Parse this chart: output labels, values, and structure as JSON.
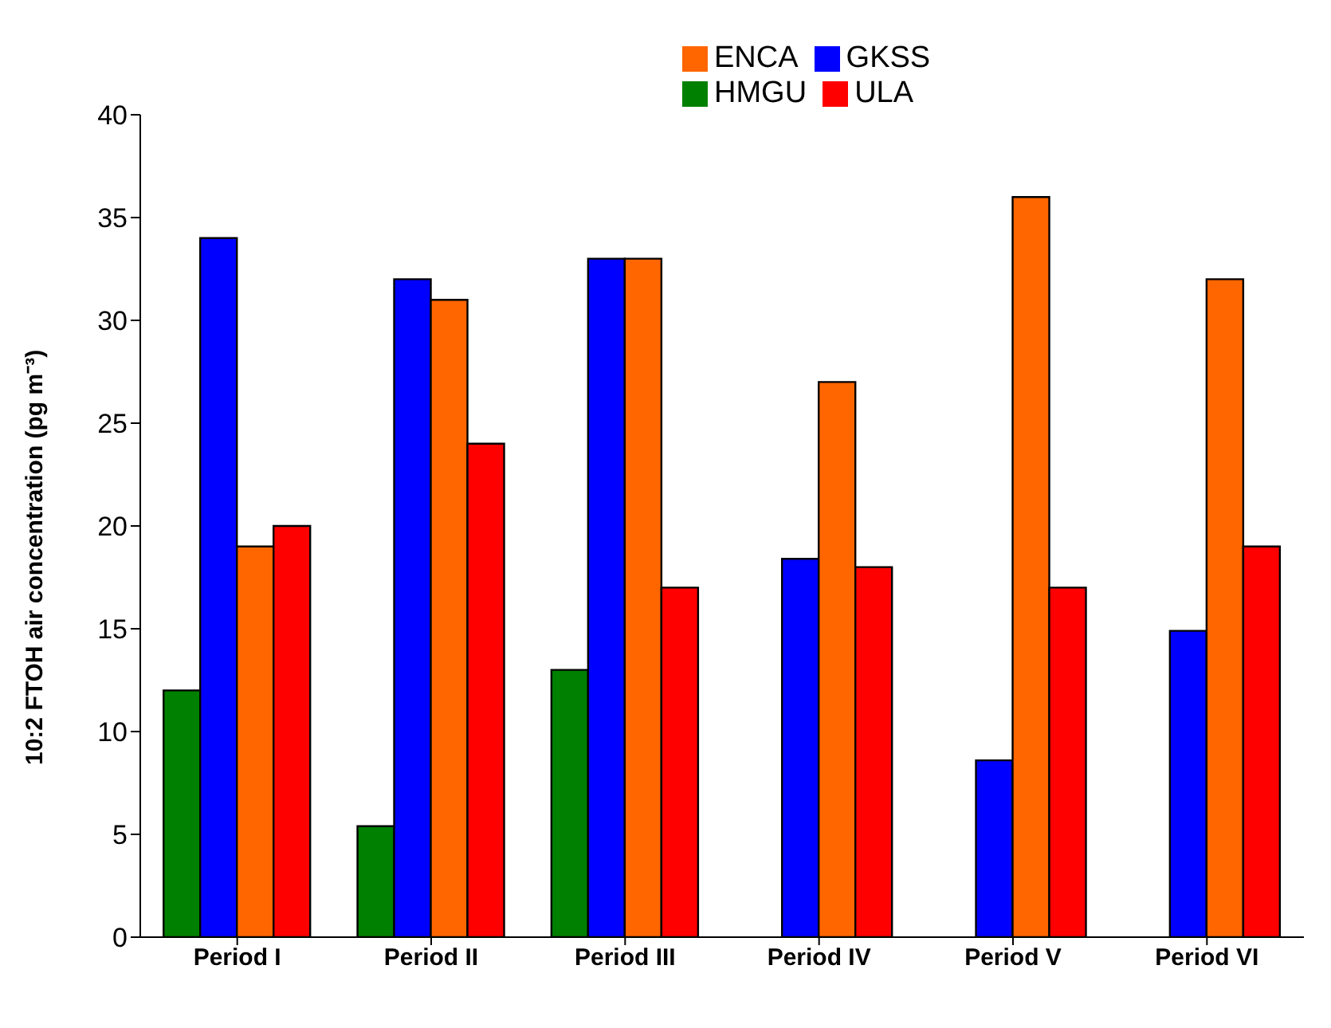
{
  "chart_data": {
    "type": "bar",
    "ylabel": "10:2 FTOH air concentration (pg m⁻³)",
    "categories": [
      "Period I",
      "Period II",
      "Period III",
      "Period IV",
      "Period V",
      "Period VI"
    ],
    "series": [
      {
        "name": "HMGU",
        "color": "#008000",
        "values": [
          12,
          5.4,
          13,
          null,
          null,
          null
        ]
      },
      {
        "name": "GKSS",
        "color": "#0000ff",
        "values": [
          34,
          32,
          33,
          18.4,
          8.6,
          14.9
        ]
      },
      {
        "name": "ENCA",
        "color": "#ff6600",
        "values": [
          19,
          31,
          33,
          27,
          36,
          32
        ]
      },
      {
        "name": "ULA",
        "color": "#ff0000",
        "values": [
          20,
          24,
          17,
          18,
          17,
          19
        ]
      }
    ],
    "ylim": [
      0,
      40
    ],
    "yticks": [
      0,
      5,
      10,
      15,
      20,
      25,
      30,
      35,
      40
    ],
    "grid": false,
    "legend": "top"
  }
}
